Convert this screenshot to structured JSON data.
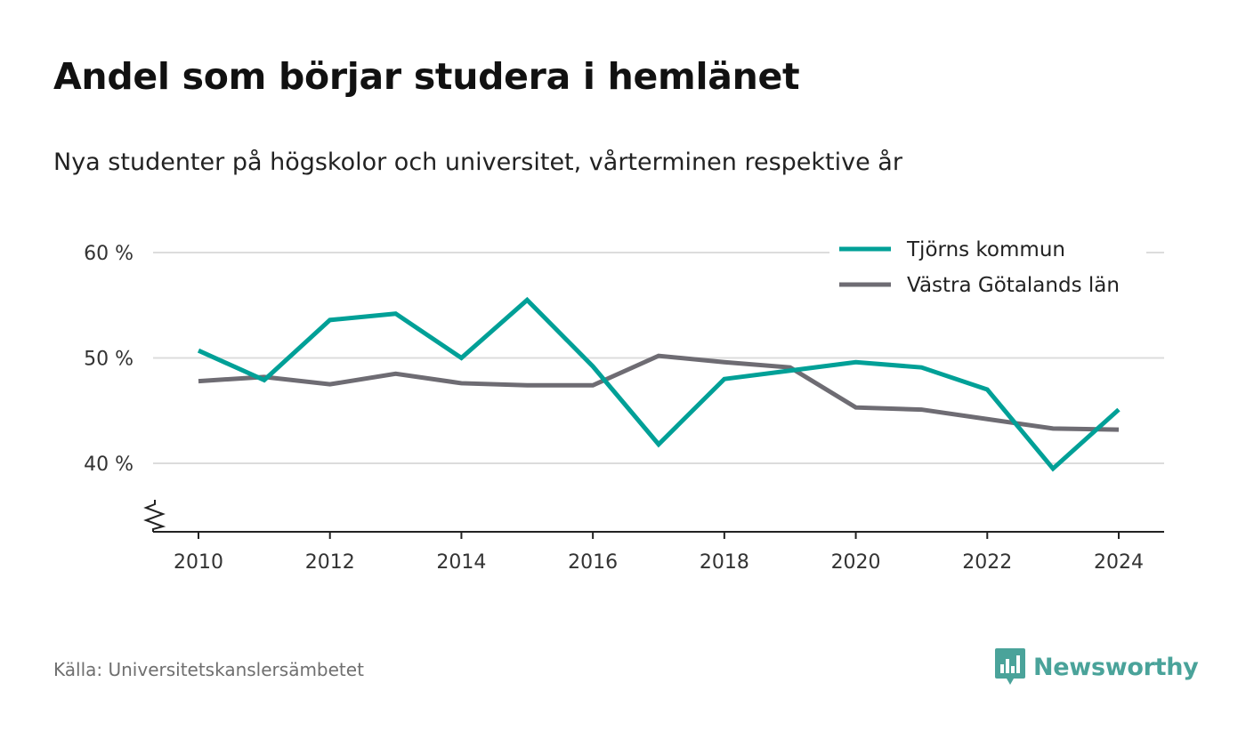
{
  "title": "Andel som börjar studera i hemlänet",
  "subtitle": "Nya studenter på högskolor och universitet, vårterminen respektive år",
  "source": "Källa: Universitetskanslersämbetet",
  "brand": {
    "name": "Newsworthy",
    "icon": "newsworthy-logo-icon",
    "color": "#4aa39a"
  },
  "chart_data": {
    "type": "line",
    "x": [
      2010,
      2011,
      2012,
      2013,
      2014,
      2015,
      2016,
      2017,
      2018,
      2019,
      2020,
      2021,
      2022,
      2023,
      2024
    ],
    "series": [
      {
        "name": "Tjörns kommun",
        "color": "#00a097",
        "values": [
          50.7,
          47.9,
          53.6,
          54.2,
          50.0,
          55.5,
          49.2,
          41.8,
          48.0,
          48.8,
          49.6,
          49.1,
          47.0,
          39.5,
          45.1
        ]
      },
      {
        "name": "Västra Götalands län",
        "color": "#6e6c73",
        "values": [
          47.8,
          48.2,
          47.5,
          48.5,
          47.6,
          47.4,
          47.4,
          50.2,
          49.6,
          49.1,
          45.3,
          45.1,
          44.2,
          43.3,
          43.2
        ]
      }
    ],
    "x_ticks": [
      "2010",
      "2012",
      "2014",
      "2016",
      "2018",
      "2020",
      "2022",
      "2024"
    ],
    "y_ticks": [
      "40 %",
      "50 %",
      "60 %"
    ],
    "y_tick_values": [
      40,
      50,
      60
    ],
    "xlim": [
      2010,
      2024
    ],
    "ylim": [
      40,
      60
    ],
    "y_axis_break": true,
    "grid": "horizontal",
    "legend_position": "top-right"
  }
}
